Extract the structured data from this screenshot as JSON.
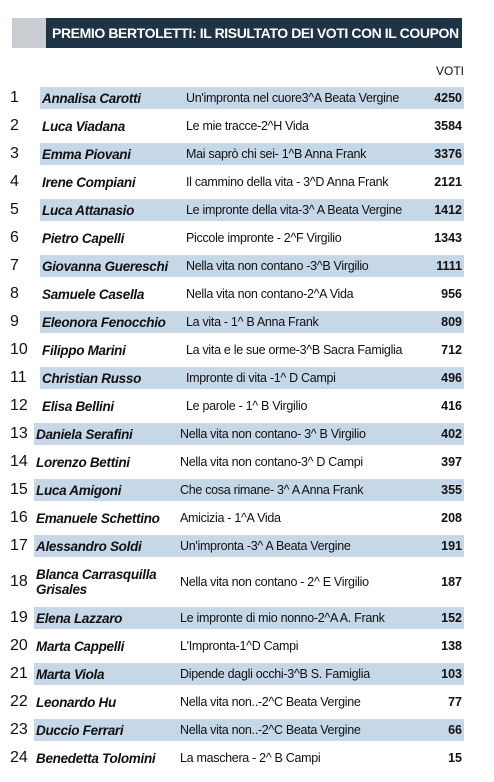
{
  "header": {
    "title": "PREMIO BERTOLETTI: IL RISULTATO DEI VOTI CON IL COUPON"
  },
  "table": {
    "columns": [
      "VOTI"
    ],
    "rows": [
      [
        1,
        "Annalisa Carotti",
        "Un'impronta nel cuore3^A Beata Vergine",
        4250
      ],
      [
        2,
        "Luca Viadana",
        "Le mie tracce-2^H Vida",
        3584
      ],
      [
        3,
        "Emma Piovani",
        "Mai saprò chi sei- 1^B Anna Frank",
        3376
      ],
      [
        4,
        "Irene Compiani",
        "Il cammino della vita - 3^D Anna Frank",
        2121
      ],
      [
        5,
        "Luca Attanasio",
        "Le impronte della vita-3^ A Beata Vergine",
        1412
      ],
      [
        6,
        "Pietro Capelli",
        "Piccole impronte - 2^F Virgilio",
        1343
      ],
      [
        7,
        "Giovanna Guereschi",
        "Nella vita non contano -3^B Virgilio",
        1111
      ],
      [
        8,
        "Samuele Casella",
        "Nella vita non contano-2^A Vida",
        956
      ],
      [
        9,
        "Eleonora Fenocchio",
        "La vita - 1^ B Anna Frank",
        809
      ],
      [
        10,
        "Filippo Marini",
        "La vita e le sue orme-3^B Sacra Famiglia",
        712
      ],
      [
        11,
        "Christian Russo",
        "Impronte di vita -1^ D Campi",
        496
      ],
      [
        12,
        "Elisa Bellini",
        "Le parole - 1^ B Virgilio",
        416
      ],
      [
        13,
        "Daniela Serafini",
        "Nella vita non contano- 3^ B Virgilio",
        402
      ],
      [
        14,
        "Lorenzo Bettini",
        "Nella vita non contano-3^ D Campi",
        397
      ],
      [
        15,
        "Luca Amigoni",
        "Che cosa rimane- 3^ A Anna Frank",
        355
      ],
      [
        16,
        "Emanuele Schettino",
        "Amicizia - 1^A Vida",
        208
      ],
      [
        17,
        "Alessandro Soldi",
        "Un'impronta -3^ A Beata Vergine",
        191
      ],
      [
        18,
        "Blanca Carrasquilla Grisales",
        "Nella vita non contano - 2^ E Virgilio",
        187
      ],
      [
        19,
        "Elena Lazzaro",
        "Le impronte di mio nonno-2^A A. Frank",
        152
      ],
      [
        20,
        "Marta Cappelli",
        "L'Impronta-1^D Campi",
        138
      ],
      [
        21,
        "Marta Viola",
        "Dipende dagli occhi-3^B S. Famiglia",
        103
      ],
      [
        22,
        "Leonardo Hu",
        "Nella vita non..-2^C Beata Vergine",
        77
      ],
      [
        23,
        "Duccio Ferrari",
        "Nella vita non..-2^C Beata Vergine",
        66
      ],
      [
        24,
        "Benedetta Tolomini",
        "La maschera - 2^ B Campi",
        15
      ]
    ]
  }
}
